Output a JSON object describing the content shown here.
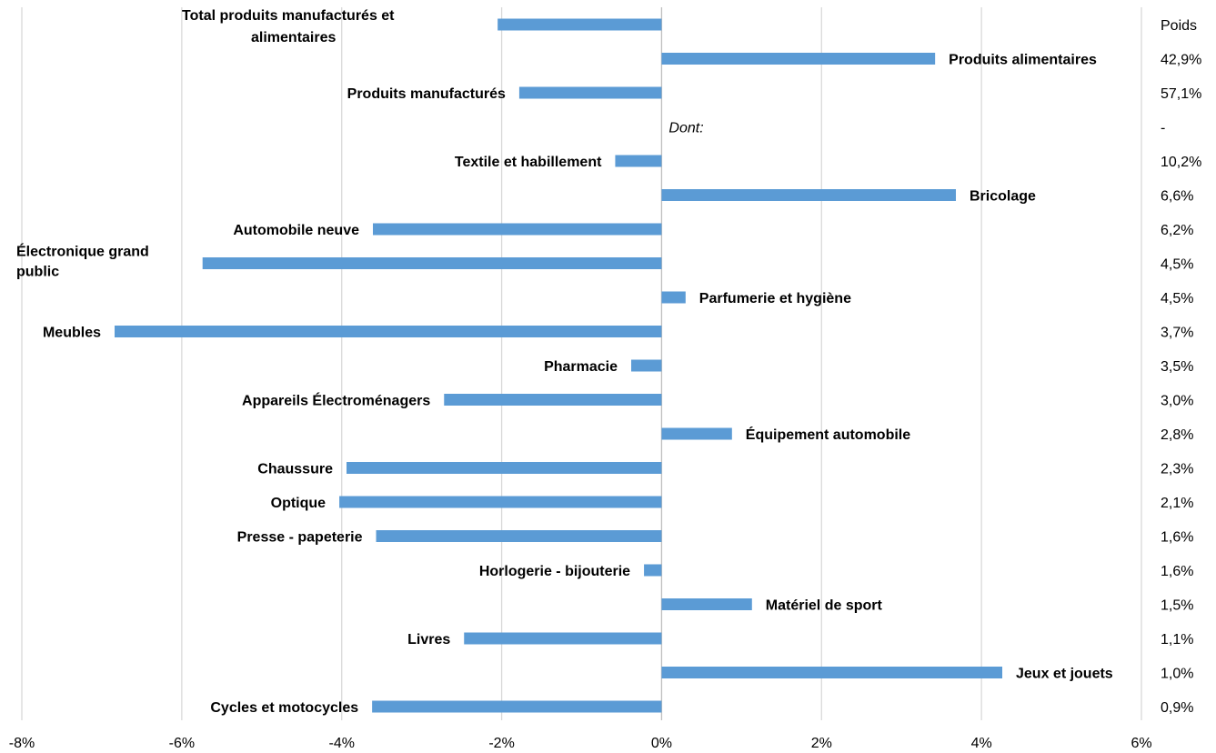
{
  "chart_data": {
    "type": "bar",
    "orientation": "horizontal",
    "xlim": [
      -8,
      6
    ],
    "xticks": [
      "-8%",
      "-6%",
      "-4%",
      "-2%",
      "0%",
      "2%",
      "4%",
      "6%"
    ],
    "grid": true,
    "weight_header": "Poids",
    "colors": {
      "bar": "#5b9bd5",
      "grid": "#d9d9d9"
    },
    "rows": [
      {
        "label": "Total produits manufacturés et alimentaires",
        "lines": [
          "Total produits manufacturés et",
          "alimentaires"
        ],
        "value": -2.05,
        "weight": ""
      },
      {
        "label": "Produits alimentaires",
        "lines": [
          "Produits alimentaires"
        ],
        "value": 3.42,
        "weight": "42,9%"
      },
      {
        "label": "Produits manufacturés",
        "lines": [
          "Produits manufacturés"
        ],
        "value": -1.78,
        "weight": "57,1%"
      },
      {
        "label": "Dont:",
        "lines": [
          "Dont:"
        ],
        "value": null,
        "weight": "-",
        "is_header": true
      },
      {
        "label": "Textile et habillement",
        "lines": [
          "Textile et habillement"
        ],
        "value": -0.58,
        "weight": "10,2%"
      },
      {
        "label": "Bricolage",
        "lines": [
          "Bricolage"
        ],
        "value": 3.68,
        "weight": "6,6%"
      },
      {
        "label": "Automobile neuve",
        "lines": [
          "Automobile neuve"
        ],
        "value": -3.61,
        "weight": "6,2%"
      },
      {
        "label": "Électronique grand public",
        "lines": [
          "Électronique grand",
          "public"
        ],
        "value": -5.74,
        "weight": "4,5%"
      },
      {
        "label": "Parfumerie et hygiène",
        "lines": [
          "Parfumerie et hygiène"
        ],
        "value": 0.3,
        "weight": "4,5%"
      },
      {
        "label": "Meubles",
        "lines": [
          "Meubles"
        ],
        "value": -6.84,
        "weight": "3,7%"
      },
      {
        "label": "Pharmacie",
        "lines": [
          "Pharmacie"
        ],
        "value": -0.38,
        "weight": "3,5%"
      },
      {
        "label": "Appareils Électroménagers",
        "lines": [
          "Appareils Électroménagers"
        ],
        "value": -2.72,
        "weight": "3,0%"
      },
      {
        "label": "Équipement automobile",
        "lines": [
          "Équipement automobile"
        ],
        "value": 0.88,
        "weight": "2,8%"
      },
      {
        "label": "Chaussure",
        "lines": [
          "Chaussure"
        ],
        "value": -3.94,
        "weight": "2,3%"
      },
      {
        "label": "Optique",
        "lines": [
          "Optique"
        ],
        "value": -4.03,
        "weight": "2,1%"
      },
      {
        "label": "Presse - papeterie",
        "lines": [
          "Presse - papeterie"
        ],
        "value": -3.57,
        "weight": "1,6%"
      },
      {
        "label": "Horlogerie - bijouterie",
        "lines": [
          "Horlogerie - bijouterie"
        ],
        "value": -0.22,
        "weight": "1,6%"
      },
      {
        "label": "Matériel de sport",
        "lines": [
          "Matériel de sport"
        ],
        "value": 1.13,
        "weight": "1,5%"
      },
      {
        "label": "Livres",
        "lines": [
          "Livres"
        ],
        "value": -2.47,
        "weight": "1,1%"
      },
      {
        "label": "Jeux et jouets",
        "lines": [
          "Jeux et jouets"
        ],
        "value": 4.26,
        "weight": "1,0%"
      },
      {
        "label": "Cycles et motocycles",
        "lines": [
          "Cycles et motocycles"
        ],
        "value": -3.62,
        "weight": "0,9%"
      }
    ]
  }
}
